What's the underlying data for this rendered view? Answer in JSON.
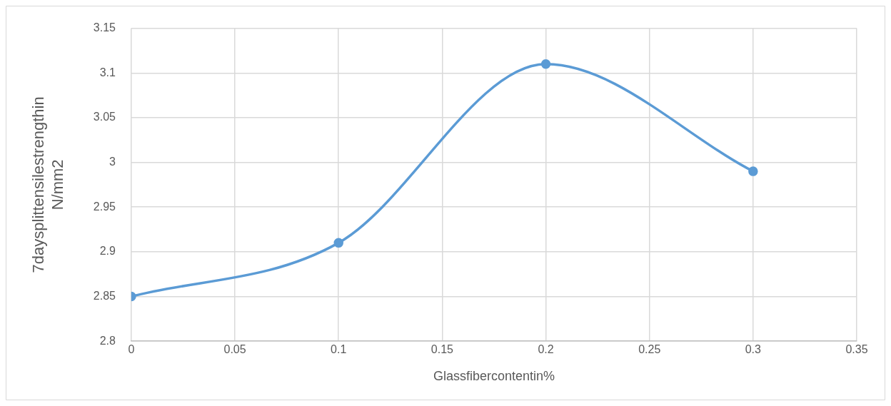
{
  "chart_data": {
    "type": "line",
    "xlabel": "Glassfibercontentin%",
    "ylabel": "7daysplittensilestrengthin N/mm2",
    "x": [
      0,
      0.1,
      0.2,
      0.3
    ],
    "series": [
      {
        "color": "#5b9bd5",
        "values": [
          2.85,
          2.91,
          3.11,
          2.99
        ]
      }
    ],
    "xlim": [
      0,
      0.35
    ],
    "xticks": [
      0,
      0.05,
      0.1,
      0.15,
      0.2,
      0.25,
      0.3,
      0.35
    ],
    "ylim": [
      2.8,
      3.15
    ],
    "yticks": [
      2.8,
      2.85,
      2.9,
      2.95,
      3,
      3.05,
      3.1,
      3.15
    ],
    "grid": true,
    "marker": "circle",
    "legend": false
  }
}
